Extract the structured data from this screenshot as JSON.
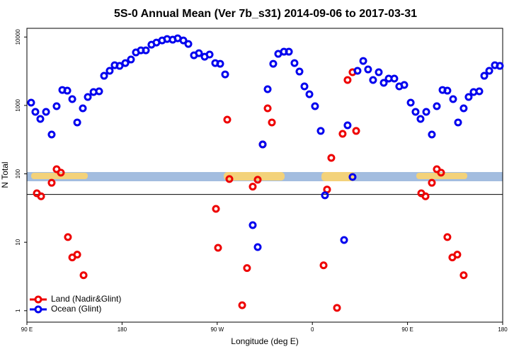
{
  "chart_data": {
    "type": "scatter",
    "title": "5S-0 Annual Mean (Ver 7b_s31)   2014-09-06 to 2017-03-31",
    "x_label": "Longitude (deg E)",
    "y_label": "N Total",
    "log_y": true,
    "xlim": [
      90,
      540
    ],
    "ylim": [
      0.68,
      13400
    ],
    "xticks": [
      {
        "value": 90,
        "label": "90 E"
      },
      180,
      {
        "value": 270,
        "label": "90 W"
      },
      {
        "value": 360,
        "label": "0"
      },
      {
        "value": 450,
        "label": "90 E"
      },
      {
        "value": 540,
        "label": "180"
      }
    ],
    "yticks": [
      1,
      10,
      100,
      1000,
      10000
    ],
    "reference_line": 50,
    "legend": "bottom-left",
    "series": [
      {
        "name": "Land (Nadir&Glint)",
        "color": "#ee0000",
        "x": [
          99.4,
          103.4,
          113.4,
          118.1,
          122.1,
          128.8,
          132.9,
          137.6,
          143.6,
          268.8,
          270.8,
          279.5,
          281.5,
          293.6,
          298.2,
          303.6,
          308.3,
          313.0,
          317.7,
          321.7,
          370.6,
          373.9,
          377.9,
          383.3,
          388.6,
          393.3,
          398.0,
          401.4,
          463.0,
          467.0,
          473.0,
          477.7,
          481.7,
          487.7,
          492.4,
          497.1,
          503.1
        ],
        "values": [
          52,
          47,
          74,
          117,
          104,
          11.9,
          6.0,
          6.6,
          3.3,
          30.8,
          8.3,
          620,
          84,
          1.2,
          4.2,
          65,
          82,
          269,
          908,
          564,
          4.6,
          59,
          171,
          1.1,
          385,
          2352,
          3055,
          424,
          52,
          47,
          74,
          117,
          104,
          11.9,
          6.0,
          6.6,
          3.3
        ]
      },
      {
        "name": "Ocean (Glint)",
        "color": "#0000ee",
        "x": [
          94.0,
          98.0,
          102.7,
          108.1,
          113.4,
          118.1,
          123.5,
          128.2,
          132.9,
          137.6,
          142.9,
          147.6,
          153.0,
          158.3,
          163.0,
          168.3,
          173.0,
          177.7,
          183.1,
          188.4,
          193.1,
          197.8,
          202.5,
          207.8,
          212.5,
          217.9,
          222.6,
          227.9,
          232.6,
          238.0,
          242.7,
          248.0,
          252.7,
          258.1,
          262.8,
          268.1,
          272.8,
          277.5,
          303.6,
          308.3,
          313.0,
          317.7,
          323.0,
          327.7,
          333.1,
          337.8,
          343.1,
          347.8,
          352.5,
          357.2,
          362.5,
          367.9,
          371.9,
          390.0,
          393.3,
          398.0,
          402.7,
          408.1,
          412.7,
          417.4,
          422.8,
          427.5,
          432.2,
          437.5,
          442.2,
          446.9,
          453.0,
          457.6,
          462.3,
          467.7,
          473.0,
          477.7,
          483.1,
          487.7,
          493.1,
          497.8,
          503.1,
          507.8,
          512.5,
          517.9,
          522.6,
          527.3,
          532.6,
          537.3
        ],
        "values": [
          1097,
          805,
          634,
          805,
          376,
          975,
          1683,
          1644,
          1236,
          564,
          908,
          1328,
          1570,
          1607,
          2711,
          3206,
          3874,
          3785,
          4160,
          4690,
          5952,
          6390,
          6390,
          7727,
          8297,
          8912,
          9354,
          9141,
          9572,
          8912,
          7918,
          5406,
          5808,
          5152,
          5543,
          4160,
          4064,
          2843,
          17.8,
          8.5,
          269,
          1726,
          4064,
          5675,
          6095,
          6095,
          4160,
          3128,
          1897,
          1456,
          975,
          424,
          48.5,
          10.8,
          512,
          90,
          3206,
          4470,
          3360,
          2352,
          3055,
          2138,
          2466,
          2466,
          1897,
          1990,
          1097,
          805,
          634,
          805,
          376,
          975,
          1683,
          1644,
          1236,
          564,
          908,
          1328,
          1570,
          1607,
          2711,
          3206,
          3874,
          3785
        ]
      }
    ]
  }
}
